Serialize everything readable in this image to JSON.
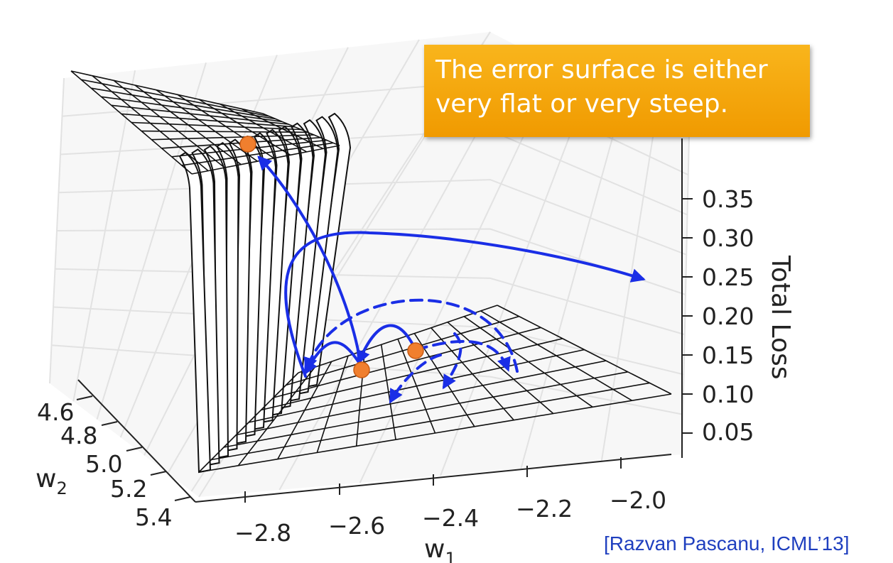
{
  "callout": {
    "line1": "The error surface is either",
    "line2": "very flat or very steep."
  },
  "citation": "[Razvan Pascanu, ICML’13]",
  "colors": {
    "arrow": "#1a2ee6",
    "point": "#f07f2e",
    "callout": "#f5a711",
    "grid": "#e4e4e4",
    "mesh": "#111111"
  },
  "chart_data": {
    "type": "surface",
    "title": "",
    "xlabel": "w",
    "xlabel_sub": "1",
    "ylabel": "w",
    "ylabel_sub": "2",
    "zlabel": "Total Loss",
    "x_ticks": [
      "−2.8",
      "−2.6",
      "−2.4",
      "−2.2",
      "−2.0"
    ],
    "y_ticks": [
      "4.6",
      "4.8",
      "5.0",
      "5.2",
      "5.4"
    ],
    "z_ticks": [
      "0.35",
      "0.30",
      "0.25",
      "0.20",
      "0.15",
      "0.10",
      "0.05"
    ],
    "xlim": [
      -2.9,
      -1.95
    ],
    "ylim": [
      4.55,
      5.45
    ],
    "zlim": [
      0.0,
      0.4
    ],
    "grid": true,
    "points": [
      {
        "x": -2.8,
        "y": 4.65,
        "z": 0.37
      },
      {
        "x": -2.55,
        "y": 5.05,
        "z": 0.14
      },
      {
        "x": -2.4,
        "y": 4.85,
        "z": 0.15
      }
    ]
  }
}
